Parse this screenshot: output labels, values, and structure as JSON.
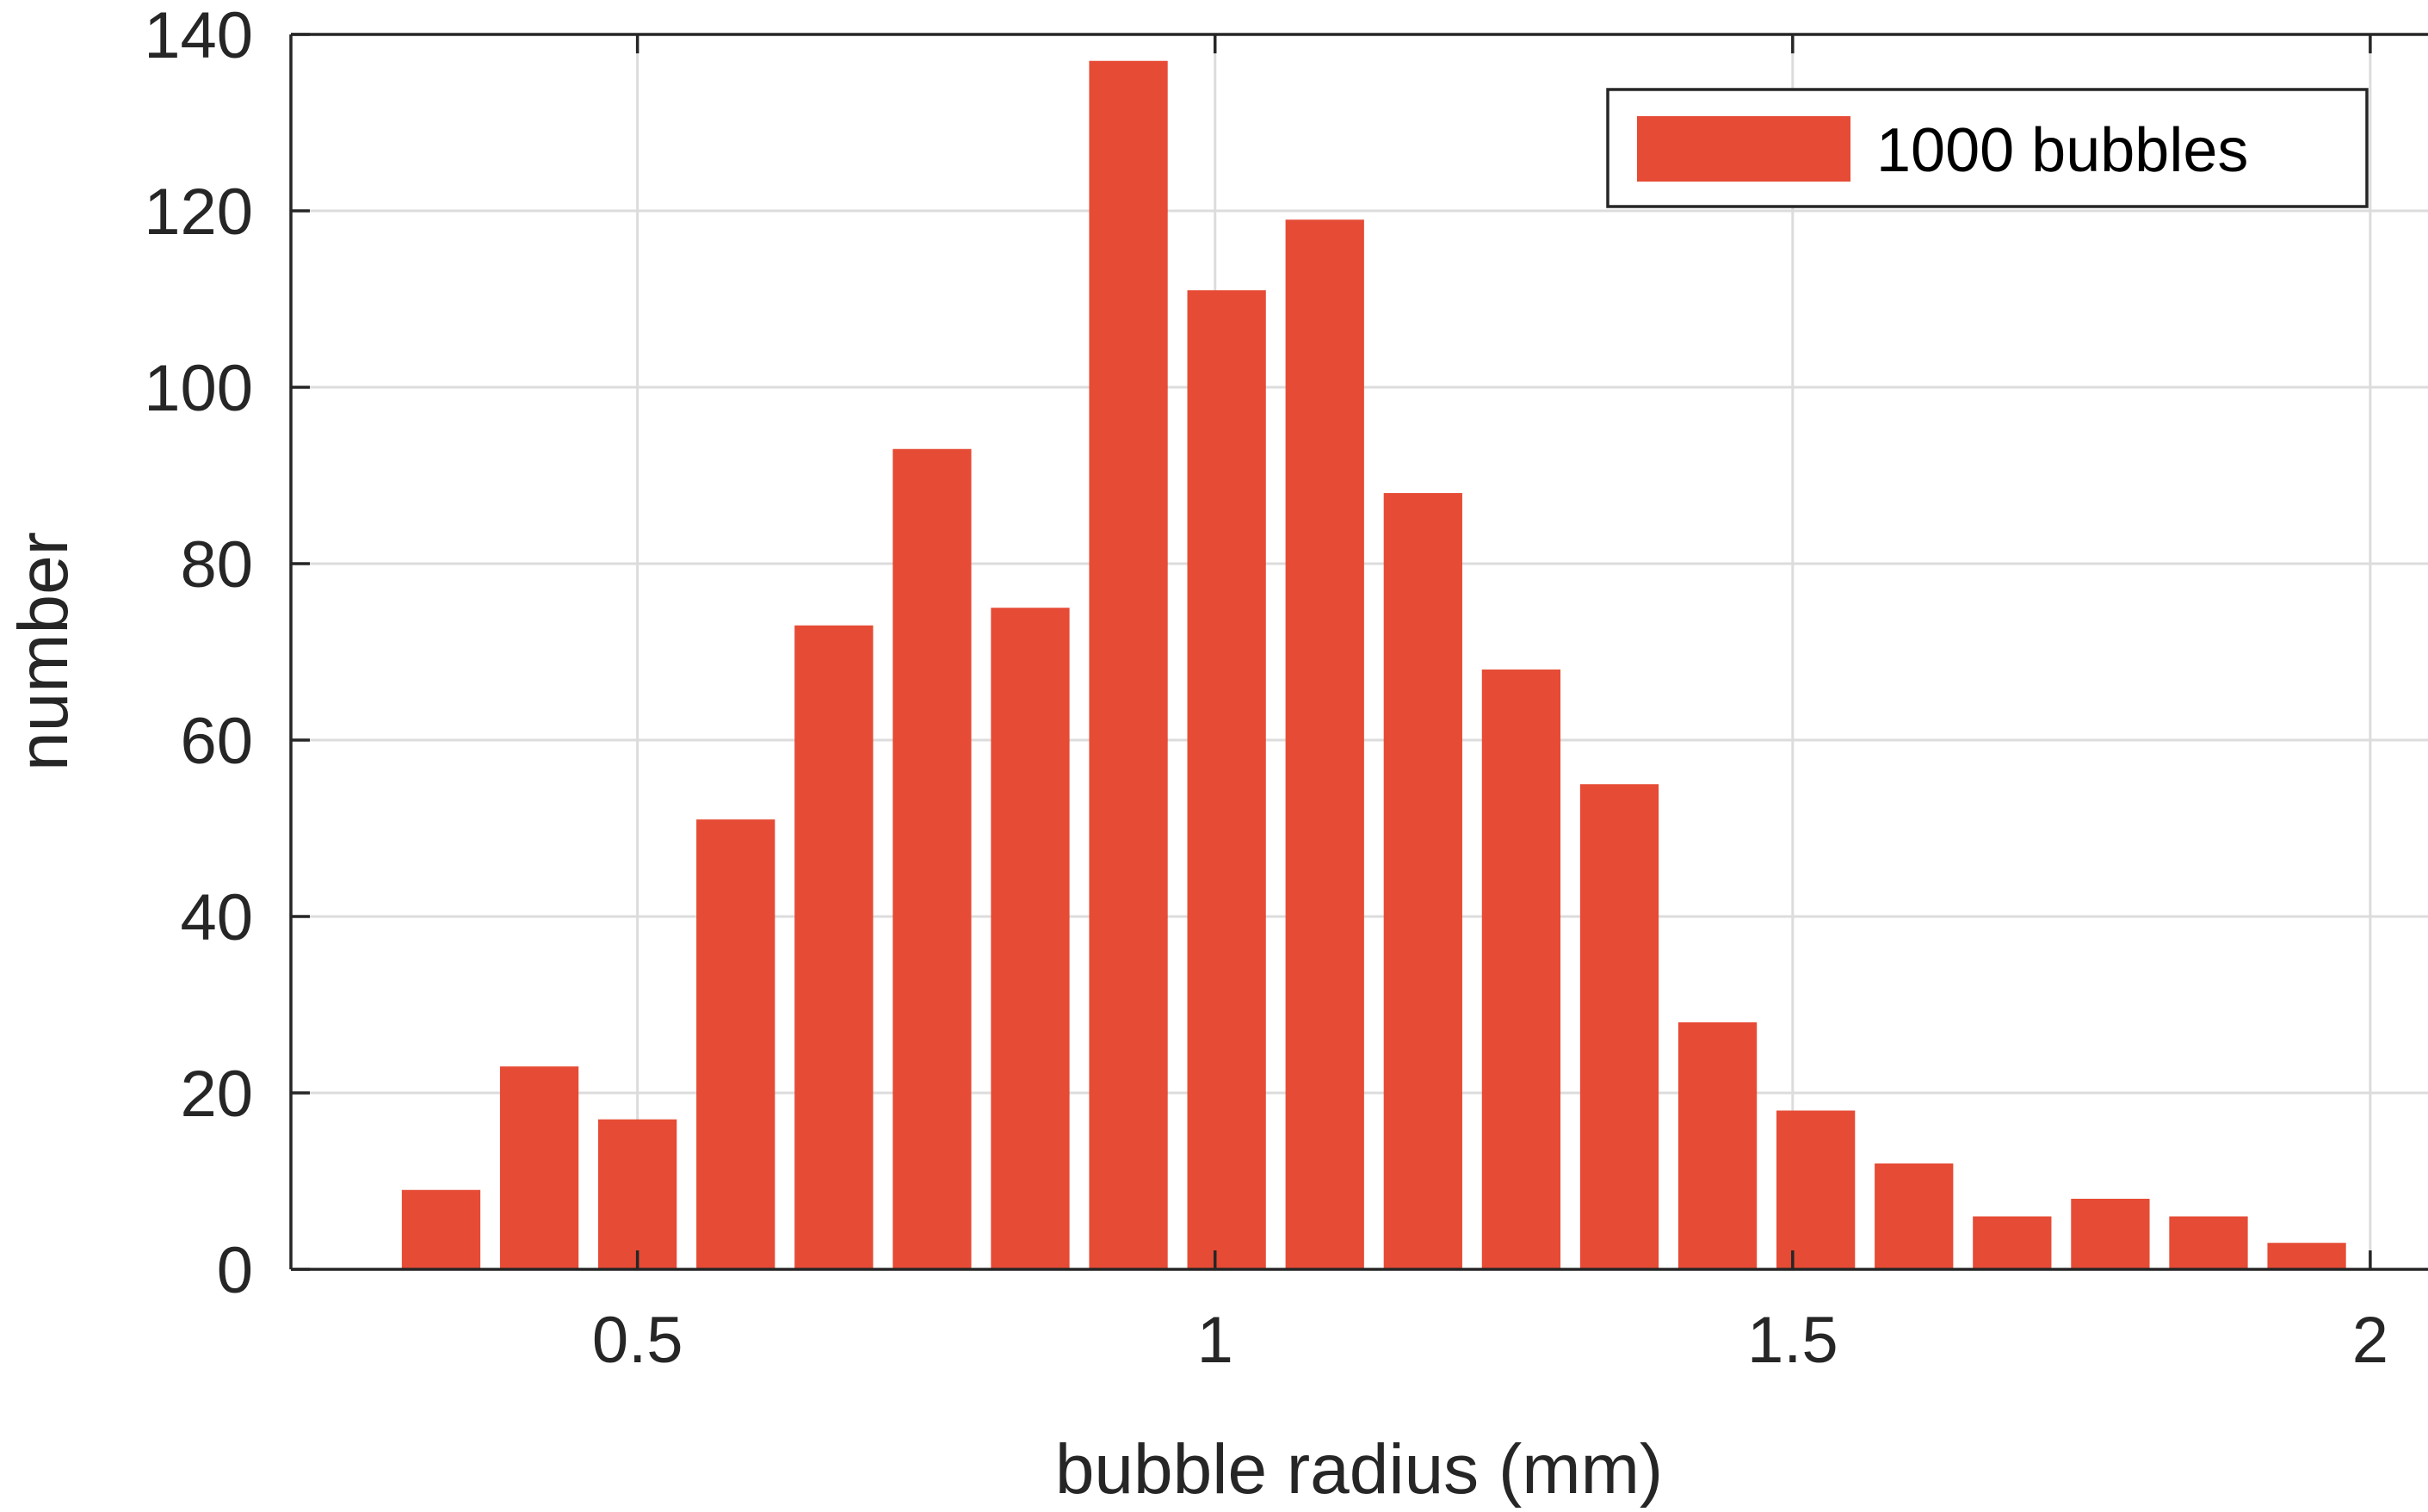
{
  "chart_data": {
    "type": "bar",
    "xlabel": "bubble radius (mm)",
    "ylabel": "number",
    "xlim": [
      0.2,
      2.05
    ],
    "ylim": [
      0,
      140
    ],
    "xticks": [
      0.5,
      1,
      1.5,
      2
    ],
    "xtick_labels": [
      "0.5",
      "1",
      "1.5",
      "2"
    ],
    "yticks": [
      0,
      20,
      40,
      60,
      80,
      100,
      120,
      140
    ],
    "ytick_labels": [
      "0",
      "20",
      "40",
      "60",
      "80",
      "100",
      "120",
      "140"
    ],
    "grid": true,
    "legend_position": "top-right",
    "bin_width": 0.085,
    "series": [
      {
        "name": "1000 bubbles",
        "color": "#e64b35",
        "x": [
          0.33,
          0.415,
          0.5,
          0.585,
          0.67,
          0.755,
          0.84,
          0.925,
          1.01,
          1.095,
          1.18,
          1.265,
          1.35,
          1.435,
          1.52,
          1.605,
          1.69,
          1.775,
          1.86,
          1.945
        ],
        "values": [
          9,
          23,
          17,
          51,
          73,
          93,
          75,
          137,
          111,
          119,
          88,
          68,
          55,
          28,
          18,
          12,
          6,
          8,
          6,
          3
        ]
      }
    ]
  }
}
